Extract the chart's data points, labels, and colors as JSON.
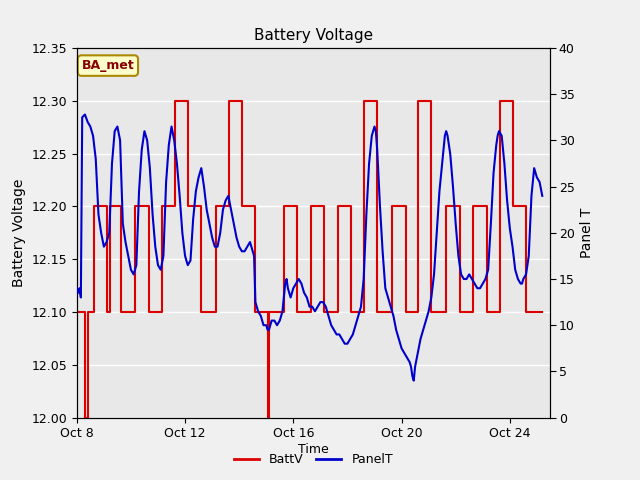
{
  "title": "Battery Voltage",
  "xlabel": "Time",
  "ylabel_left": "Battery Voltage",
  "ylabel_right": "Panel T",
  "ylim_left": [
    12.0,
    12.35
  ],
  "ylim_right": [
    0,
    40
  ],
  "yticks_left": [
    12.0,
    12.05,
    12.1,
    12.15,
    12.2,
    12.25,
    12.3,
    12.35
  ],
  "yticks_right": [
    0,
    5,
    10,
    15,
    20,
    25,
    30,
    35,
    40
  ],
  "fig_bg_color": "#f0f0f0",
  "plot_bg_color": "#e8e8e8",
  "annotation_text": "BA_met",
  "annotation_bg": "#ffffcc",
  "annotation_border": "#aa8800",
  "annotation_text_color": "#880000",
  "batt_color": "#dd0000",
  "panel_color": "#0000cc",
  "xtick_positions": [
    8,
    12,
    16,
    20,
    24
  ],
  "xtick_labels": [
    "Oct 8",
    "Oct 12",
    "Oct 16",
    "Oct 20",
    "Oct 24"
  ],
  "xlim": [
    8.0,
    25.5
  ],
  "batt_data": [
    [
      8.0,
      12.1
    ],
    [
      8.3,
      12.1
    ],
    [
      8.32,
      12.0
    ],
    [
      8.38,
      12.0
    ],
    [
      8.4,
      12.1
    ],
    [
      8.5,
      12.1
    ],
    [
      8.6,
      12.1
    ],
    [
      8.63,
      12.2
    ],
    [
      8.7,
      12.2
    ],
    [
      9.05,
      12.2
    ],
    [
      9.1,
      12.1
    ],
    [
      9.2,
      12.1
    ],
    [
      9.22,
      12.2
    ],
    [
      9.6,
      12.2
    ],
    [
      9.65,
      12.1
    ],
    [
      9.7,
      12.1
    ],
    [
      10.05,
      12.1
    ],
    [
      10.1,
      12.1
    ],
    [
      10.15,
      12.2
    ],
    [
      10.6,
      12.2
    ],
    [
      10.65,
      12.1
    ],
    [
      10.7,
      12.1
    ],
    [
      11.05,
      12.1
    ],
    [
      11.1,
      12.1
    ],
    [
      11.15,
      12.2
    ],
    [
      11.6,
      12.2
    ],
    [
      11.62,
      12.3
    ],
    [
      12.05,
      12.3
    ],
    [
      12.1,
      12.2
    ],
    [
      12.55,
      12.2
    ],
    [
      12.6,
      12.1
    ],
    [
      13.05,
      12.1
    ],
    [
      13.1,
      12.1
    ],
    [
      13.15,
      12.2
    ],
    [
      13.6,
      12.2
    ],
    [
      13.62,
      12.3
    ],
    [
      14.05,
      12.3
    ],
    [
      14.1,
      12.2
    ],
    [
      14.55,
      12.2
    ],
    [
      14.6,
      12.1
    ],
    [
      15.05,
      12.1
    ],
    [
      15.07,
      12.0
    ],
    [
      15.1,
      12.0
    ],
    [
      15.12,
      12.1
    ],
    [
      15.55,
      12.1
    ],
    [
      15.6,
      12.1
    ],
    [
      15.65,
      12.2
    ],
    [
      16.1,
      12.2
    ],
    [
      16.15,
      12.1
    ],
    [
      16.55,
      12.1
    ],
    [
      16.6,
      12.1
    ],
    [
      16.65,
      12.2
    ],
    [
      17.1,
      12.2
    ],
    [
      17.15,
      12.1
    ],
    [
      17.55,
      12.1
    ],
    [
      17.6,
      12.1
    ],
    [
      17.65,
      12.2
    ],
    [
      18.1,
      12.2
    ],
    [
      18.15,
      12.1
    ],
    [
      18.55,
      12.1
    ],
    [
      18.6,
      12.1
    ],
    [
      18.62,
      12.3
    ],
    [
      19.05,
      12.3
    ],
    [
      19.1,
      12.1
    ],
    [
      19.55,
      12.1
    ],
    [
      19.6,
      12.1
    ],
    [
      19.65,
      12.2
    ],
    [
      20.1,
      12.2
    ],
    [
      20.15,
      12.1
    ],
    [
      20.55,
      12.1
    ],
    [
      20.6,
      12.1
    ],
    [
      20.62,
      12.3
    ],
    [
      21.05,
      12.3
    ],
    [
      21.1,
      12.1
    ],
    [
      21.55,
      12.1
    ],
    [
      21.6,
      12.1
    ],
    [
      21.65,
      12.2
    ],
    [
      22.1,
      12.2
    ],
    [
      22.15,
      12.1
    ],
    [
      22.55,
      12.1
    ],
    [
      22.6,
      12.1
    ],
    [
      22.65,
      12.2
    ],
    [
      23.1,
      12.2
    ],
    [
      23.15,
      12.1
    ],
    [
      23.55,
      12.1
    ],
    [
      23.6,
      12.1
    ],
    [
      23.62,
      12.3
    ],
    [
      24.05,
      12.3
    ],
    [
      24.1,
      12.2
    ],
    [
      24.55,
      12.2
    ],
    [
      24.6,
      12.1
    ],
    [
      25.2,
      12.1
    ]
  ],
  "panel_data": [
    [
      8.0,
      14.0
    ],
    [
      8.05,
      13.5
    ],
    [
      8.1,
      14.0
    ],
    [
      8.15,
      13.0
    ],
    [
      8.2,
      32.5
    ],
    [
      8.3,
      32.8
    ],
    [
      8.4,
      32.0
    ],
    [
      8.5,
      31.5
    ],
    [
      8.6,
      30.5
    ],
    [
      8.7,
      28.0
    ],
    [
      8.8,
      22.0
    ],
    [
      8.9,
      20.0
    ],
    [
      9.0,
      18.5
    ],
    [
      9.1,
      19.0
    ],
    [
      9.2,
      20.0
    ],
    [
      9.3,
      27.5
    ],
    [
      9.4,
      31.0
    ],
    [
      9.5,
      31.5
    ],
    [
      9.6,
      30.0
    ],
    [
      9.7,
      21.0
    ],
    [
      9.8,
      19.0
    ],
    [
      9.9,
      17.5
    ],
    [
      10.0,
      16.0
    ],
    [
      10.1,
      15.5
    ],
    [
      10.2,
      16.5
    ],
    [
      10.3,
      24.5
    ],
    [
      10.4,
      29.0
    ],
    [
      10.5,
      31.0
    ],
    [
      10.6,
      30.0
    ],
    [
      10.7,
      27.0
    ],
    [
      10.8,
      22.0
    ],
    [
      10.9,
      18.5
    ],
    [
      11.0,
      16.5
    ],
    [
      11.1,
      16.0
    ],
    [
      11.2,
      17.5
    ],
    [
      11.3,
      25.5
    ],
    [
      11.4,
      29.5
    ],
    [
      11.5,
      31.5
    ],
    [
      11.6,
      30.0
    ],
    [
      11.7,
      27.5
    ],
    [
      11.8,
      24.0
    ],
    [
      11.9,
      20.0
    ],
    [
      12.0,
      17.5
    ],
    [
      12.1,
      16.5
    ],
    [
      12.2,
      17.0
    ],
    [
      12.3,
      21.5
    ],
    [
      12.4,
      24.5
    ],
    [
      12.5,
      26.0
    ],
    [
      12.6,
      27.0
    ],
    [
      12.7,
      25.0
    ],
    [
      12.8,
      22.5
    ],
    [
      12.9,
      21.0
    ],
    [
      13.0,
      19.5
    ],
    [
      13.1,
      18.5
    ],
    [
      13.2,
      18.5
    ],
    [
      13.3,
      20.0
    ],
    [
      13.4,
      22.5
    ],
    [
      13.5,
      23.5
    ],
    [
      13.6,
      24.0
    ],
    [
      13.7,
      22.5
    ],
    [
      13.8,
      21.0
    ],
    [
      13.9,
      19.5
    ],
    [
      14.0,
      18.5
    ],
    [
      14.1,
      18.0
    ],
    [
      14.2,
      18.0
    ],
    [
      14.3,
      18.5
    ],
    [
      14.4,
      19.0
    ],
    [
      14.5,
      18.0
    ],
    [
      14.55,
      17.5
    ],
    [
      14.6,
      12.5
    ],
    [
      14.7,
      11.5
    ],
    [
      14.8,
      11.0
    ],
    [
      14.9,
      10.0
    ],
    [
      15.0,
      10.0
    ],
    [
      15.05,
      9.5
    ],
    [
      15.1,
      9.5
    ],
    [
      15.2,
      10.5
    ],
    [
      15.3,
      10.5
    ],
    [
      15.4,
      10.0
    ],
    [
      15.5,
      10.5
    ],
    [
      15.6,
      11.5
    ],
    [
      15.7,
      14.5
    ],
    [
      15.75,
      15.0
    ],
    [
      15.8,
      14.0
    ],
    [
      15.9,
      13.0
    ],
    [
      16.0,
      14.0
    ],
    [
      16.1,
      14.5
    ],
    [
      16.2,
      15.0
    ],
    [
      16.3,
      14.5
    ],
    [
      16.4,
      13.5
    ],
    [
      16.5,
      13.0
    ],
    [
      16.6,
      12.0
    ],
    [
      16.7,
      12.0
    ],
    [
      16.8,
      11.5
    ],
    [
      16.9,
      12.0
    ],
    [
      17.0,
      12.5
    ],
    [
      17.1,
      12.5
    ],
    [
      17.2,
      12.0
    ],
    [
      17.3,
      11.0
    ],
    [
      17.4,
      10.0
    ],
    [
      17.5,
      9.5
    ],
    [
      17.6,
      9.0
    ],
    [
      17.7,
      9.0
    ],
    [
      17.8,
      8.5
    ],
    [
      17.9,
      8.0
    ],
    [
      18.0,
      8.0
    ],
    [
      18.1,
      8.5
    ],
    [
      18.2,
      9.0
    ],
    [
      18.3,
      10.0
    ],
    [
      18.4,
      11.0
    ],
    [
      18.5,
      12.0
    ],
    [
      18.6,
      15.0
    ],
    [
      18.7,
      22.0
    ],
    [
      18.8,
      27.5
    ],
    [
      18.9,
      30.5
    ],
    [
      19.0,
      31.5
    ],
    [
      19.05,
      31.0
    ],
    [
      19.1,
      29.0
    ],
    [
      19.2,
      23.0
    ],
    [
      19.3,
      18.0
    ],
    [
      19.4,
      14.0
    ],
    [
      19.5,
      13.0
    ],
    [
      19.6,
      12.0
    ],
    [
      19.65,
      11.5
    ],
    [
      19.7,
      11.0
    ],
    [
      19.8,
      9.5
    ],
    [
      19.9,
      8.5
    ],
    [
      20.0,
      7.5
    ],
    [
      20.1,
      7.0
    ],
    [
      20.2,
      6.5
    ],
    [
      20.3,
      6.0
    ],
    [
      20.35,
      5.5
    ],
    [
      20.4,
      4.5
    ],
    [
      20.45,
      4.0
    ],
    [
      20.5,
      5.5
    ],
    [
      20.6,
      7.0
    ],
    [
      20.7,
      8.5
    ],
    [
      20.8,
      9.5
    ],
    [
      20.9,
      10.5
    ],
    [
      21.0,
      11.5
    ],
    [
      21.1,
      13.0
    ],
    [
      21.2,
      15.5
    ],
    [
      21.3,
      20.0
    ],
    [
      21.4,
      24.5
    ],
    [
      21.5,
      27.5
    ],
    [
      21.55,
      29.0
    ],
    [
      21.6,
      30.5
    ],
    [
      21.65,
      31.0
    ],
    [
      21.7,
      30.5
    ],
    [
      21.8,
      28.5
    ],
    [
      21.9,
      25.0
    ],
    [
      22.0,
      21.0
    ],
    [
      22.1,
      17.5
    ],
    [
      22.2,
      15.5
    ],
    [
      22.3,
      15.0
    ],
    [
      22.4,
      15.0
    ],
    [
      22.5,
      15.5
    ],
    [
      22.6,
      15.0
    ],
    [
      22.7,
      14.5
    ],
    [
      22.8,
      14.0
    ],
    [
      22.9,
      14.0
    ],
    [
      23.0,
      14.5
    ],
    [
      23.1,
      15.0
    ],
    [
      23.2,
      16.0
    ],
    [
      23.3,
      21.0
    ],
    [
      23.4,
      26.5
    ],
    [
      23.5,
      29.5
    ],
    [
      23.55,
      30.5
    ],
    [
      23.6,
      31.0
    ],
    [
      23.7,
      30.5
    ],
    [
      23.8,
      27.5
    ],
    [
      23.9,
      23.5
    ],
    [
      24.0,
      20.5
    ],
    [
      24.1,
      18.5
    ],
    [
      24.2,
      16.0
    ],
    [
      24.3,
      15.0
    ],
    [
      24.4,
      14.5
    ],
    [
      24.45,
      14.5
    ],
    [
      24.5,
      15.0
    ],
    [
      24.6,
      15.5
    ],
    [
      24.7,
      17.5
    ],
    [
      24.8,
      24.0
    ],
    [
      24.9,
      27.0
    ],
    [
      25.0,
      26.0
    ],
    [
      25.1,
      25.5
    ],
    [
      25.2,
      24.0
    ]
  ]
}
